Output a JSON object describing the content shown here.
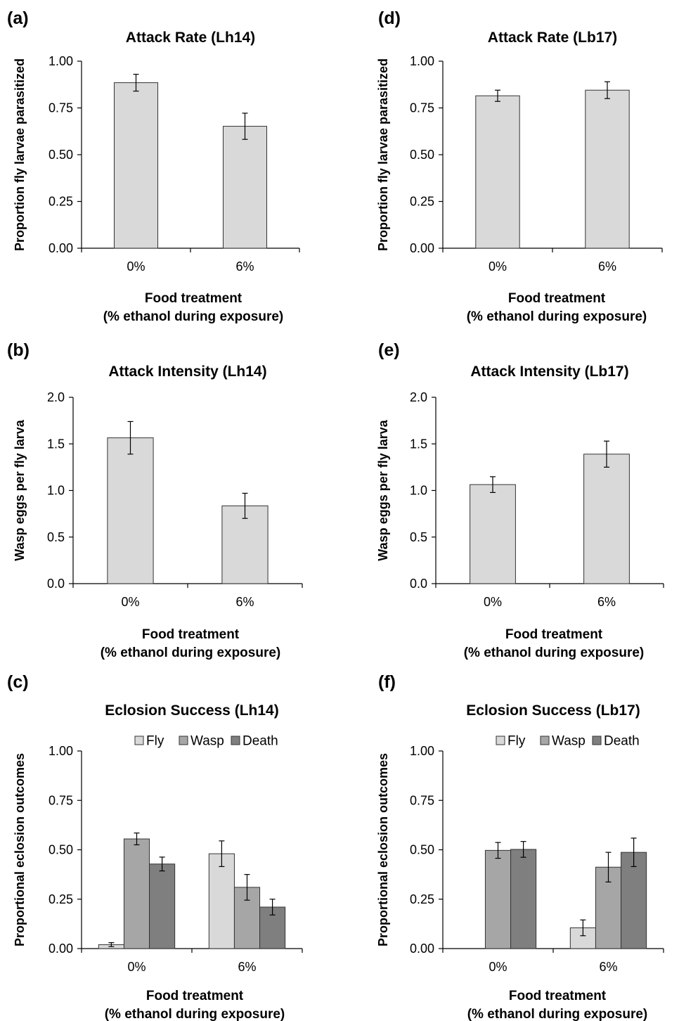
{
  "chart_data": [
    {
      "panel": "(a)",
      "type": "bar",
      "title": "Attack Rate (Lh14)",
      "ylabel": "Proportion fly larvae parasitized",
      "xlabel": [
        "Food treatment",
        "(% ethanol during exposure)"
      ],
      "categories": [
        "0%",
        "6%"
      ],
      "ylim": [
        0,
        1
      ],
      "yticks": [
        "0.00",
        "0.25",
        "0.50",
        "0.75",
        "1.00"
      ],
      "series": [
        {
          "values": [
            0.885,
            0.652
          ],
          "errors": [
            0.045,
            0.07
          ],
          "color": "#d9d9d9"
        }
      ]
    },
    {
      "panel": "(b)",
      "type": "bar",
      "title": "Attack Intensity (Lh14)",
      "ylabel": "Wasp eggs per fly larva",
      "xlabel": [
        "Food treatment",
        "(% ethanol during exposure)"
      ],
      "categories": [
        "0%",
        "6%"
      ],
      "ylim": [
        0,
        2
      ],
      "yticks": [
        "0.0",
        "0.5",
        "1.0",
        "1.5",
        "2.0"
      ],
      "series": [
        {
          "values": [
            1.565,
            0.835
          ],
          "errors": [
            0.175,
            0.135
          ],
          "color": "#d9d9d9"
        }
      ]
    },
    {
      "panel": "(c)",
      "type": "bar",
      "title": "Eclosion Success (Lh14)",
      "ylabel": "Proportional eclosion outcomes",
      "xlabel": [
        "Food treatment",
        "(% ethanol during exposure)"
      ],
      "categories": [
        "0%",
        "6%"
      ],
      "ylim": [
        0,
        1
      ],
      "yticks": [
        "0.00",
        "0.25",
        "0.50",
        "0.75",
        "1.00"
      ],
      "legend": "top",
      "series": [
        {
          "name": "Fly",
          "values": [
            0.02,
            0.48
          ],
          "errors": [
            0.01,
            0.065
          ],
          "color": "#d9d9d9"
        },
        {
          "name": "Wasp",
          "values": [
            0.555,
            0.31
          ],
          "errors": [
            0.03,
            0.065
          ],
          "color": "#a6a6a6"
        },
        {
          "name": "Death",
          "values": [
            0.428,
            0.21
          ],
          "errors": [
            0.035,
            0.04
          ],
          "color": "#7f7f7f"
        }
      ]
    },
    {
      "panel": "(d)",
      "type": "bar",
      "title": "Attack Rate (Lb17)",
      "ylabel": "Proportion fly larvae parasitized",
      "xlabel": [
        "Food treatment",
        "(% ethanol during exposure)"
      ],
      "categories": [
        "0%",
        "6%"
      ],
      "ylim": [
        0,
        1
      ],
      "yticks": [
        "0.00",
        "0.25",
        "0.50",
        "0.75",
        "1.00"
      ],
      "series": [
        {
          "values": [
            0.815,
            0.845
          ],
          "errors": [
            0.03,
            0.045
          ],
          "color": "#d9d9d9"
        }
      ]
    },
    {
      "panel": "(e)",
      "type": "bar",
      "title": "Attack Intensity (Lb17)",
      "ylabel": "Wasp eggs per fly larva",
      "xlabel": [
        "Food treatment",
        "(% ethanol during exposure)"
      ],
      "categories": [
        "0%",
        "6%"
      ],
      "ylim": [
        0,
        2
      ],
      "yticks": [
        "0.0",
        "0.5",
        "1.0",
        "1.5",
        "2.0"
      ],
      "series": [
        {
          "values": [
            1.063,
            1.39
          ],
          "errors": [
            0.085,
            0.14
          ],
          "color": "#d9d9d9"
        }
      ]
    },
    {
      "panel": "(f)",
      "type": "bar",
      "title": "Eclosion Success (Lb17)",
      "ylabel": "Proportional eclosion outcomes",
      "xlabel": [
        "Food treatment",
        "(% ethanol during exposure)"
      ],
      "categories": [
        "0%",
        "6%"
      ],
      "ylim": [
        0,
        1
      ],
      "yticks": [
        "0.00",
        "0.25",
        "0.50",
        "0.75",
        "1.00"
      ],
      "legend": "top",
      "series": [
        {
          "name": "Fly",
          "values": [
            0,
            0.105
          ],
          "errors": [
            0,
            0.04
          ],
          "color": "#d9d9d9"
        },
        {
          "name": "Wasp",
          "values": [
            0.497,
            0.412
          ],
          "errors": [
            0.04,
            0.075
          ],
          "color": "#a6a6a6"
        },
        {
          "name": "Death",
          "values": [
            0.502,
            0.487
          ],
          "errors": [
            0.04,
            0.072
          ],
          "color": "#7f7f7f"
        }
      ]
    }
  ]
}
